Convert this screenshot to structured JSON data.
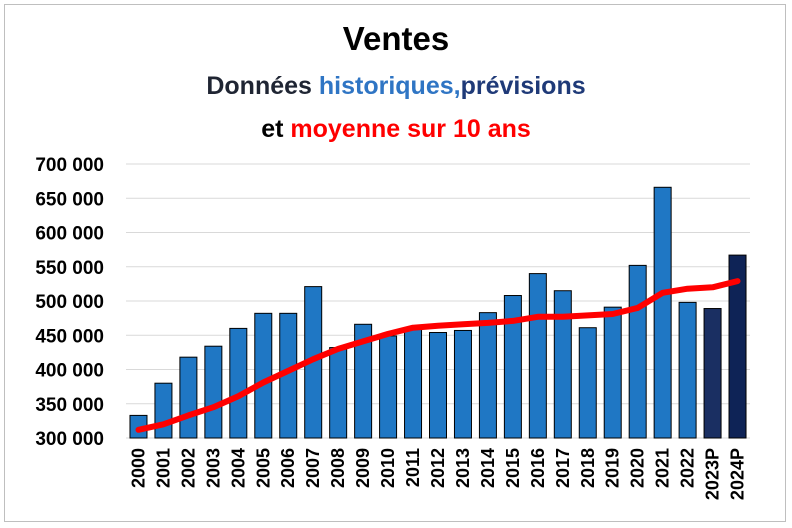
{
  "chart_data": {
    "type": "bar",
    "title": "Ventes",
    "subtitle": {
      "line1_prefix": "Données",
      "line1_historical": "historiques,",
      "line1_forecast": "prévisions",
      "line2_prefix": "et",
      "line2_average": "moyenne sur 10 ans"
    },
    "xlabel": "",
    "ylabel": "",
    "ylim": [
      300000,
      700000
    ],
    "y_ticks": [
      "300 000",
      "350 000",
      "400 000",
      "450 000",
      "500 000",
      "550 000",
      "600 000",
      "650 000",
      "700 000"
    ],
    "grid": true,
    "categories": [
      "2000",
      "2001",
      "2002",
      "2003",
      "2004",
      "2005",
      "2006",
      "2007",
      "2008",
      "2009",
      "2010",
      "2011",
      "2012",
      "2013",
      "2014",
      "2015",
      "2016",
      "2017",
      "2018",
      "2019",
      "2020",
      "2021",
      "2022",
      "2023P",
      "2024P"
    ],
    "series": [
      {
        "kind": "bar",
        "values": [
          333000,
          380000,
          418000,
          434000,
          460000,
          482000,
          482000,
          521000,
          432000,
          466000,
          449000,
          460000,
          454000,
          457000,
          483000,
          508000,
          540000,
          515000,
          461000,
          491000,
          552000,
          666000,
          498000,
          489000,
          567000
        ]
      },
      {
        "kind": "line",
        "values": [
          312000,
          320000,
          333000,
          345000,
          361000,
          381000,
          398000,
          415000,
          430000,
          441000,
          452000,
          461000,
          464000,
          466000,
          468000,
          471000,
          477000,
          477000,
          479000,
          481000,
          490000,
          512000,
          518000,
          520000,
          529000
        ]
      }
    ],
    "colors": {
      "historical_bar": "#1f77c4",
      "forecast_2023": "#1a2f62",
      "forecast_2024": "#0e2356",
      "average_line": "#ff0000",
      "grid": "#d9d9d9"
    }
  }
}
